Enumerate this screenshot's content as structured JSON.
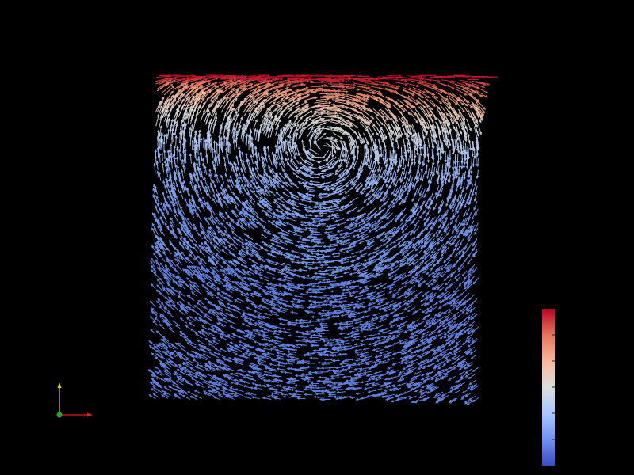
{
  "scene": {
    "background_color": "#000000",
    "visualization": "glyph-vector-field",
    "flow_pattern": "lid-driven-cavity-vortex"
  },
  "colormap": {
    "name": "cool-to-warm",
    "stops": [
      "#3b4cc0",
      "#6f92f3",
      "#aac7fd",
      "#dddddd",
      "#f7b89c",
      "#e7745b",
      "#b40426"
    ]
  },
  "color_legend": {
    "orientation": "vertical",
    "tick_count": 5
  },
  "orientation_axes": {
    "x_color": "#e41a1c",
    "y_color": "#e6d200",
    "z_color": "#2ca02c"
  }
}
